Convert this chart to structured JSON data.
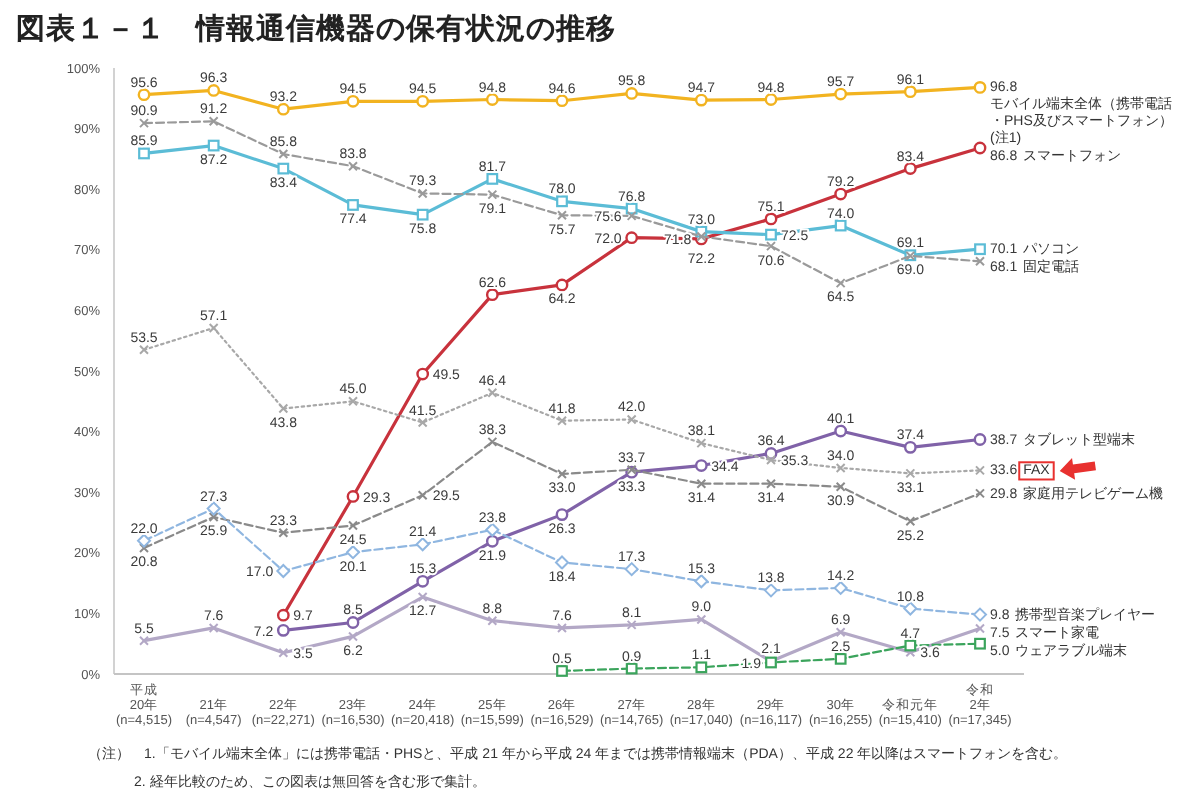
{
  "chart_data": {
    "type": "line",
    "title": "図表１－１　情報通信機器の保有状況の推移",
    "categories": [
      "平成\n20年\n(n=4,515)",
      "21年\n(n=4,547)",
      "22年\n(n=22,271)",
      "23年\n(n=16,530)",
      "24年\n(n=20,418)",
      "25年\n(n=15,599)",
      "26年\n(n=16,529)",
      "27年\n(n=14,765)",
      "28年\n(n=17,040)",
      "29年\n(n=16,117)",
      "30年\n(n=16,255)",
      "令和元年\n(n=15,410)",
      "令和\n2年\n(n=17,345)"
    ],
    "ylim": [
      0,
      100
    ],
    "yticks": [
      {
        "value": 0,
        "label": "0%"
      },
      {
        "value": 10,
        "label": "10%"
      },
      {
        "value": 20,
        "label": "20%"
      },
      {
        "value": 30,
        "label": "30%"
      },
      {
        "value": 40,
        "label": "40%"
      },
      {
        "value": 50,
        "label": "50%"
      },
      {
        "value": 60,
        "label": "60%"
      },
      {
        "value": 70,
        "label": "70%"
      },
      {
        "value": 80,
        "label": "80%"
      },
      {
        "value": 90,
        "label": "90%"
      },
      {
        "value": 100,
        "label": "100%"
      }
    ],
    "series": [
      {
        "name": "モバイル端末全体（携帯電話・PHS及びスマートフォン）(注1)",
        "color": "#f2b320",
        "marker": "circle",
        "line_style": "solid",
        "values": [
          95.6,
          96.3,
          93.2,
          94.5,
          94.5,
          94.8,
          94.6,
          95.8,
          94.7,
          94.8,
          95.7,
          96.1,
          96.8
        ],
        "value_labels": [
          "95.6",
          "96.3",
          "93.2",
          "94.5",
          "94.5",
          "94.8",
          "94.6",
          "95.8",
          "94.7",
          "94.8",
          "95.7",
          "96.1",
          "96.8"
        ]
      },
      {
        "name": "スマートフォン",
        "color": "#c8323c",
        "marker": "circle",
        "line_style": "solid",
        "values": [
          null,
          null,
          9.7,
          29.3,
          49.5,
          62.6,
          64.2,
          72.0,
          71.8,
          75.1,
          79.2,
          83.4,
          86.8
        ],
        "value_labels": [
          null,
          null,
          "9.7",
          "29.3",
          "49.5",
          "62.6",
          "64.2",
          "72.0",
          "71.8",
          "75.1",
          "79.2",
          "83.4",
          "86.8"
        ]
      },
      {
        "name": "パソコン",
        "color": "#5bbcd6",
        "marker": "square",
        "line_style": "solid",
        "values": [
          85.9,
          87.2,
          83.4,
          77.4,
          75.8,
          81.7,
          78.0,
          76.8,
          73.0,
          72.5,
          74.0,
          69.1,
          70.1
        ],
        "value_labels": [
          "85.9",
          "87.2",
          "83.4",
          "77.4",
          "75.8",
          "81.7",
          "78.0",
          "76.8",
          "73.0",
          "72.5",
          "74.0",
          "69.1",
          "70.1"
        ]
      },
      {
        "name": "固定電話",
        "color": "#9a9a9a",
        "marker": "cross",
        "line_style": "dashed",
        "values": [
          90.9,
          91.2,
          85.8,
          83.8,
          79.3,
          79.1,
          75.7,
          75.6,
          72.2,
          70.6,
          64.5,
          69.0,
          68.1
        ],
        "value_labels": [
          "90.9",
          "91.2",
          "85.8",
          "83.8",
          "79.3",
          "79.1",
          "75.7",
          "75.6",
          "72.2",
          "70.6",
          "64.5",
          "69.0",
          "68.1"
        ]
      },
      {
        "name": "タブレット型端末",
        "color": "#8062a8",
        "marker": "circle",
        "line_style": "solid",
        "values": [
          null,
          null,
          7.2,
          8.5,
          15.3,
          21.9,
          26.3,
          33.3,
          34.4,
          36.4,
          40.1,
          37.4,
          38.7
        ],
        "value_labels": [
          null,
          null,
          "7.2",
          "8.5",
          "15.3",
          "21.9",
          "26.3",
          "33.3",
          "34.4",
          "36.4",
          "40.1",
          "37.4",
          "38.7"
        ]
      },
      {
        "name": "FAX",
        "color": "#a8a8a8",
        "marker": "cross",
        "line_style": "dotted",
        "values": [
          53.5,
          57.1,
          43.8,
          45.0,
          41.5,
          46.4,
          41.8,
          42.0,
          38.1,
          35.3,
          34.0,
          33.1,
          33.6
        ],
        "value_labels": [
          "53.5",
          "57.1",
          "43.8",
          "45.0",
          "41.5",
          "46.4",
          "41.8",
          "42.0",
          "38.1",
          "35.3",
          "34.0",
          "33.1",
          "33.6"
        ]
      },
      {
        "name": "家庭用テレビゲーム機",
        "color": "#8a8a8a",
        "marker": "cross",
        "line_style": "dashed",
        "values": [
          20.8,
          25.9,
          23.3,
          24.5,
          29.5,
          38.3,
          33.0,
          33.7,
          31.4,
          31.4,
          30.9,
          25.2,
          29.8
        ],
        "value_labels": [
          "20.8",
          "25.9",
          "23.3",
          "24.5",
          "29.5",
          "38.3",
          "33.0",
          "33.7",
          "31.4",
          "31.4",
          "30.9",
          "25.2",
          "29.8"
        ]
      },
      {
        "name": "携帯型音楽プレイヤー",
        "color": "#8fb6e0",
        "marker": "diamond",
        "line_style": "dashed",
        "values": [
          22.0,
          27.3,
          17.0,
          20.1,
          21.4,
          23.8,
          18.4,
          17.3,
          15.3,
          13.8,
          14.2,
          10.8,
          9.8
        ],
        "value_labels": [
          "22.0",
          "27.3",
          "17.0",
          "20.1",
          "21.4",
          "23.8",
          "18.4",
          "17.3",
          "15.3",
          "13.8",
          "14.2",
          "10.8",
          "9.8"
        ]
      },
      {
        "name": "スマート家電",
        "color": "#b3a8c6",
        "marker": "cross",
        "line_style": "solid",
        "values": [
          5.5,
          7.6,
          3.5,
          6.2,
          12.7,
          8.8,
          7.6,
          8.1,
          9.0,
          2.1,
          6.9,
          3.6,
          7.5
        ],
        "value_labels": [
          "5.5",
          "7.6",
          "3.5",
          "6.2",
          "12.7",
          "8.8",
          "7.6",
          "8.1",
          "9.0",
          "2.1",
          "6.9",
          "3.6",
          "7.5"
        ]
      },
      {
        "name": "ウェアラブル端末",
        "color": "#3ba45c",
        "marker": "square",
        "line_style": "dashed",
        "values": [
          null,
          null,
          null,
          null,
          null,
          null,
          0.5,
          0.9,
          1.1,
          1.9,
          2.5,
          4.7,
          5.0
        ],
        "value_labels": [
          null,
          null,
          null,
          null,
          null,
          null,
          "0.5",
          "0.9",
          "1.1",
          "1.9",
          "2.5",
          "4.7",
          "5.0"
        ]
      }
    ],
    "annotations": [
      "（注）　1.「モバイル端末全体」には携帯電話・PHSと、平成 21 年から平成 24 年までは携帯情報端末（PDA）、平成 22 年以降はスマートフォンを含む。",
      "2. 経年比較のため、この図表は無回答を含む形で集計。"
    ]
  }
}
